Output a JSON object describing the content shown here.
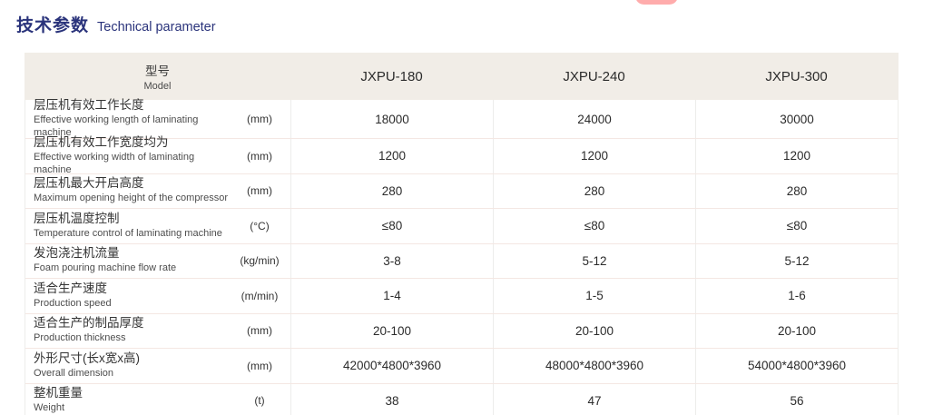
{
  "title": {
    "zh": "技术参数",
    "en": "Technical parameter"
  },
  "table": {
    "header": {
      "model_zh": "型号",
      "model_en": "Model",
      "columns": [
        "JXPU-180",
        "JXPU-240",
        "JXPU-300"
      ]
    },
    "rows": [
      {
        "zh": "层压机有效工作长度",
        "en": "Effective working length of laminating machine",
        "unit": "(mm)",
        "values": [
          "18000",
          "24000",
          "30000"
        ]
      },
      {
        "zh": "层压机有效工作宽度均为",
        "en": "Effective working width of laminating machine",
        "unit": "(mm)",
        "values": [
          "1200",
          "1200",
          "1200"
        ]
      },
      {
        "zh": "层压机最大开启高度",
        "en": "Maximum opening height of the compressor",
        "unit": "(mm)",
        "values": [
          "280",
          "280",
          "280"
        ]
      },
      {
        "zh": "层压机温度控制",
        "en": "Temperature control of laminating machine",
        "unit": "(°C)",
        "values": [
          "≤80",
          "≤80",
          "≤80"
        ]
      },
      {
        "zh": "发泡浇注机流量",
        "en": "Foam pouring machine flow rate",
        "unit": "(kg/min)",
        "values": [
          "3-8",
          "5-12",
          "5-12"
        ]
      },
      {
        "zh": "适合生产速度",
        "en": "Production speed",
        "unit": "(m/min)",
        "values": [
          "1-4",
          "1-5",
          "1-6"
        ]
      },
      {
        "zh": "适合生产的制品厚度",
        "en": "Production thickness",
        "unit": "(mm)",
        "values": [
          "20-100",
          "20-100",
          "20-100"
        ]
      },
      {
        "zh": "外形尺寸(长x宽x高)",
        "en": "Overall dimension",
        "unit": "(mm)",
        "values": [
          "42000*4800*3960",
          "48000*4800*3960",
          "54000*4800*3960"
        ]
      },
      {
        "zh": "整机重量",
        "en": "Weight",
        "unit": "(t)",
        "values": [
          "38",
          "47",
          "56"
        ]
      }
    ]
  },
  "colors": {
    "title_navy": "#2a337b",
    "header_bg": "#f1ede7",
    "row_line": "#f4e7e3",
    "column_line": "#ededeb",
    "accent_pink": "#ff9e9e"
  }
}
